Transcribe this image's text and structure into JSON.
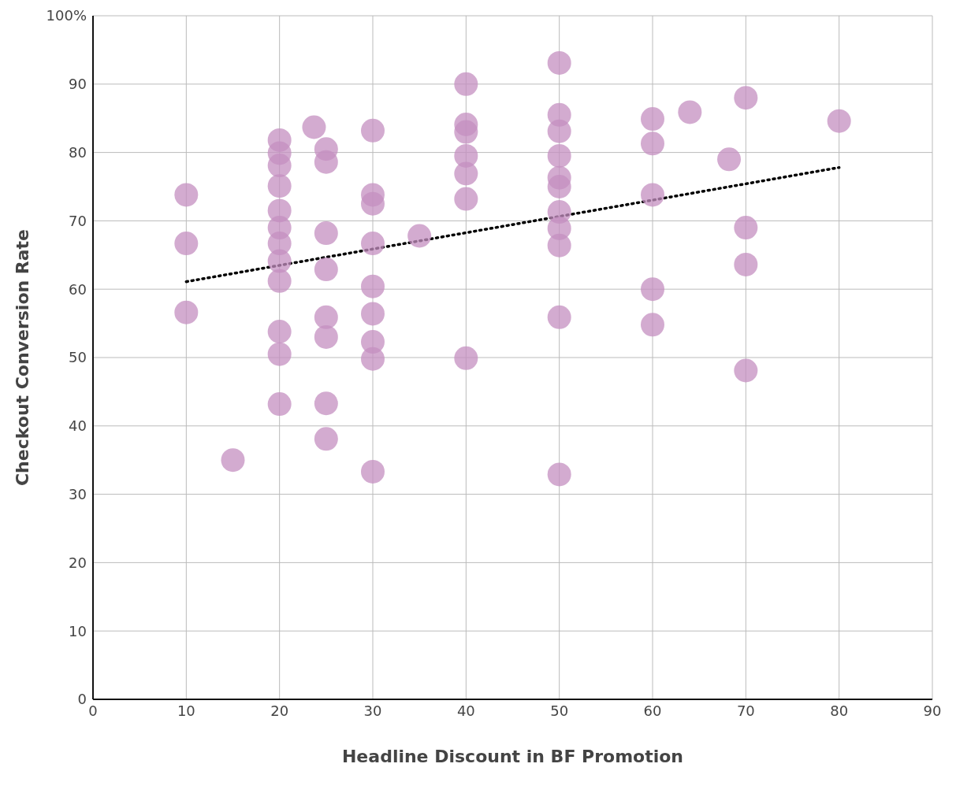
{
  "chart_data": {
    "type": "scatter",
    "xlabel": "Headline Discount in BF Promotion",
    "ylabel": "Checkout Conversion Rate",
    "xlim": [
      0,
      90
    ],
    "xticks": [
      0,
      10,
      20,
      30,
      40,
      50,
      60,
      70,
      80,
      90
    ],
    "ylim": [
      0,
      100
    ],
    "yticks": [
      0,
      10,
      20,
      30,
      40,
      50,
      60,
      70,
      80,
      90,
      {
        "value": 100,
        "label": "100%"
      }
    ],
    "grid": true,
    "series": [
      {
        "color": "#c48fc0",
        "marker": "circle",
        "x": [
          10,
          10,
          10,
          15,
          20,
          20,
          20,
          20,
          20,
          20,
          20,
          20,
          20,
          20,
          20,
          20,
          23.7,
          25,
          25,
          25,
          25,
          25,
          25,
          25,
          25,
          30,
          30,
          30,
          30,
          30,
          30,
          30,
          30,
          30,
          35,
          40,
          40,
          40,
          40,
          40,
          40,
          40,
          50,
          50,
          50,
          50,
          50,
          50,
          50,
          50,
          50,
          50,
          50,
          60,
          60,
          60,
          60,
          60,
          64,
          68.2,
          70,
          70,
          70,
          70,
          80
        ],
        "values": [
          73.8,
          66.7,
          56.6,
          35.0,
          81.8,
          79.9,
          78.1,
          75.1,
          71.5,
          69.0,
          66.7,
          64.1,
          61.2,
          53.8,
          50.5,
          43.2,
          83.7,
          80.5,
          78.6,
          68.2,
          62.9,
          55.9,
          53.0,
          43.3,
          38.1,
          83.2,
          73.8,
          72.5,
          66.7,
          60.4,
          56.4,
          52.3,
          49.8,
          33.3,
          67.8,
          90.0,
          84.1,
          83.0,
          79.5,
          76.9,
          73.2,
          49.9,
          93.1,
          85.5,
          83.1,
          79.5,
          76.3,
          75.0,
          71.3,
          68.9,
          66.4,
          55.9,
          32.9,
          84.9,
          81.3,
          73.8,
          60.0,
          54.8,
          85.9,
          79.0,
          88.0,
          69.0,
          63.6,
          48.1,
          84.6
        ]
      },
      {
        "type": "line",
        "color": "#000000",
        "marker": "none",
        "line_style": "dotted",
        "x": [
          10,
          80
        ],
        "values": [
          61.1,
          77.8
        ]
      }
    ]
  }
}
